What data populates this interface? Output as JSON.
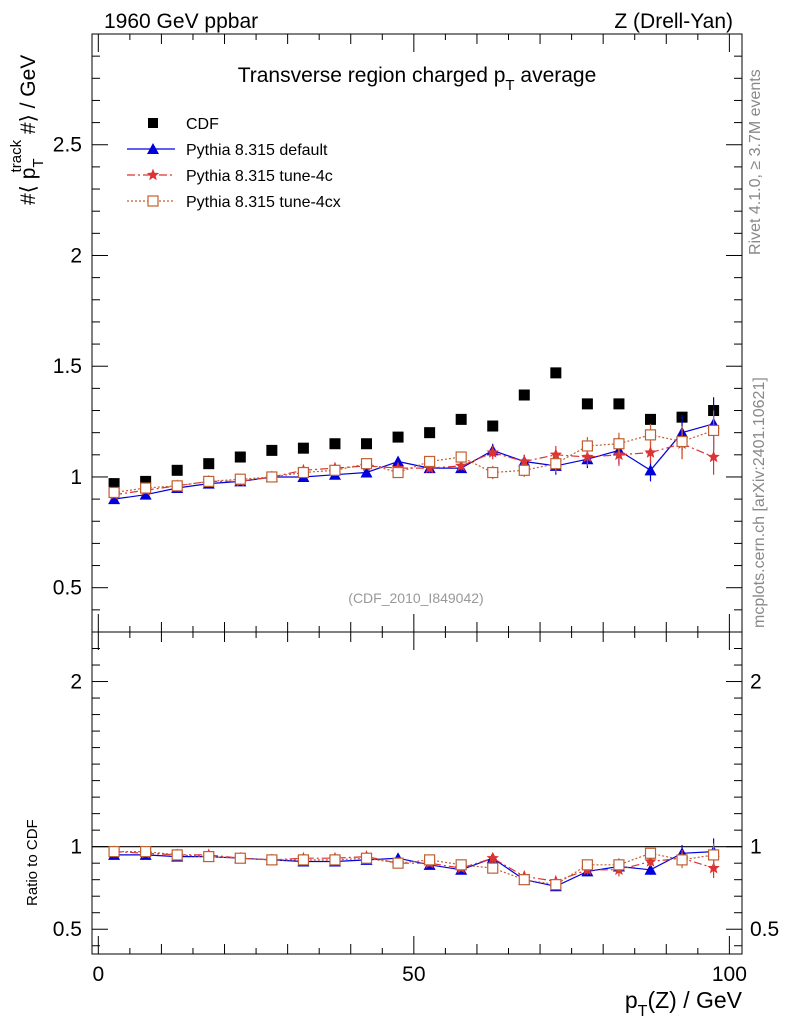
{
  "header": {
    "energy": "1960 GeV ppbar",
    "process": "Z (Drell-Yan)"
  },
  "side_text": {
    "rivet": "Rivet 4.1.0, ≥ 3.7M events",
    "mcplots": "mcplots.cern.ch [arXiv:2401.10621]"
  },
  "chart_data": [
    {
      "type": "scatter",
      "panel": "main",
      "title": "Transverse region charged p",
      "title_sub": "T",
      "title_rest": " average",
      "ylabel": "#⟨ p",
      "ylabel_sub": "T",
      "ylabel_sup": "track",
      "ylabel_rest": " #⟩ / GeV",
      "watermark": "(CDF_2010_I849042)",
      "xlim": [
        -1,
        102
      ],
      "ylim": [
        0.3,
        3.0
      ],
      "y_ticks": [
        0.5,
        1,
        1.5,
        2,
        2.5
      ],
      "y_tick_labels": [
        "0.5",
        "1",
        "1.5",
        "2",
        "2.5"
      ],
      "legend_position": "top-left",
      "x": [
        2.5,
        7.5,
        12.5,
        17.5,
        22.5,
        27.5,
        32.5,
        37.5,
        42.5,
        47.5,
        52.5,
        57.5,
        62.5,
        67.5,
        72.5,
        77.5,
        82.5,
        87.5,
        92.5,
        97.5
      ],
      "series": [
        {
          "name": "CDF",
          "color": "#000000",
          "marker": "square-filled",
          "values": [
            0.97,
            0.98,
            1.03,
            1.06,
            1.09,
            1.12,
            1.13,
            1.15,
            1.15,
            1.18,
            1.2,
            1.26,
            1.23,
            1.37,
            1.47,
            1.33,
            1.33,
            1.26,
            1.27,
            1.3
          ]
        },
        {
          "name": "Pythia 8.315 default",
          "color": "#0000dd",
          "marker": "triangle",
          "line": "solid",
          "values": [
            0.9,
            0.92,
            0.95,
            0.97,
            0.98,
            1.0,
            1.0,
            1.01,
            1.02,
            1.07,
            1.04,
            1.04,
            1.12,
            1.07,
            1.05,
            1.08,
            1.12,
            1.03,
            1.2,
            1.24
          ],
          "errors": [
            0.01,
            0.01,
            0.01,
            0.01,
            0.01,
            0.01,
            0.01,
            0.01,
            0.01,
            0.02,
            0.02,
            0.02,
            0.03,
            0.03,
            0.04,
            0.04,
            0.06,
            0.05,
            0.08,
            0.12
          ]
        },
        {
          "name": "Pythia 8.315 tune-4c",
          "color": "#dd3333",
          "marker": "star",
          "line": "dashdot",
          "values": [
            0.92,
            0.94,
            0.96,
            0.98,
            0.98,
            1.0,
            1.03,
            1.04,
            1.05,
            1.04,
            1.04,
            1.05,
            1.11,
            1.07,
            1.1,
            1.09,
            1.1,
            1.11,
            1.15,
            1.09
          ],
          "errors": [
            0.01,
            0.01,
            0.01,
            0.01,
            0.01,
            0.01,
            0.01,
            0.01,
            0.01,
            0.02,
            0.02,
            0.02,
            0.03,
            0.03,
            0.04,
            0.04,
            0.05,
            0.05,
            0.07,
            0.08
          ]
        },
        {
          "name": "Pythia 8.315 tune-4cx",
          "color": "#c06030",
          "marker": "square-open",
          "line": "dotted",
          "values": [
            0.93,
            0.95,
            0.96,
            0.98,
            0.99,
            1.0,
            1.02,
            1.03,
            1.06,
            1.02,
            1.07,
            1.09,
            1.02,
            1.03,
            1.06,
            1.14,
            1.15,
            1.19,
            1.16,
            1.21
          ],
          "errors": [
            0.01,
            0.01,
            0.01,
            0.01,
            0.01,
            0.01,
            0.01,
            0.01,
            0.01,
            0.02,
            0.02,
            0.02,
            0.03,
            0.03,
            0.04,
            0.04,
            0.05,
            0.05,
            0.07,
            0.09
          ]
        }
      ]
    },
    {
      "type": "line",
      "panel": "ratio",
      "ylabel": "Ratio to CDF",
      "xlabel": "p",
      "xlabel_sub": "T",
      "xlabel_rest": "(Z) / GeV",
      "xlim": [
        -1,
        102
      ],
      "ylim": [
        0.35,
        2.3
      ],
      "x_ticks": [
        0,
        50,
        100
      ],
      "x_tick_labels": [
        "0",
        "50",
        "100"
      ],
      "y_ticks": [
        0.5,
        1,
        2
      ],
      "y_tick_labels": [
        "0.5",
        "1",
        "2"
      ],
      "reference_line": 1,
      "x": [
        2.5,
        7.5,
        12.5,
        17.5,
        22.5,
        27.5,
        32.5,
        37.5,
        42.5,
        47.5,
        52.5,
        57.5,
        62.5,
        67.5,
        72.5,
        77.5,
        82.5,
        87.5,
        92.5,
        97.5
      ],
      "series": [
        {
          "name": "Pythia 8.315 default",
          "color": "#0000dd",
          "marker": "triangle",
          "line": "solid",
          "values": [
            0.95,
            0.95,
            0.94,
            0.94,
            0.93,
            0.92,
            0.91,
            0.91,
            0.92,
            0.93,
            0.89,
            0.86,
            0.93,
            0.8,
            0.76,
            0.85,
            0.88,
            0.86,
            0.96,
            0.97
          ],
          "errors": [
            0.01,
            0.01,
            0.01,
            0.01,
            0.01,
            0.01,
            0.01,
            0.01,
            0.01,
            0.02,
            0.02,
            0.02,
            0.03,
            0.03,
            0.03,
            0.03,
            0.04,
            0.03,
            0.05,
            0.08
          ]
        },
        {
          "name": "Pythia 8.315 tune-4c",
          "color": "#dd3333",
          "marker": "star",
          "line": "dashdot",
          "values": [
            0.97,
            0.96,
            0.95,
            0.95,
            0.93,
            0.92,
            0.93,
            0.93,
            0.94,
            0.9,
            0.9,
            0.87,
            0.93,
            0.82,
            0.79,
            0.86,
            0.86,
            0.91,
            0.93,
            0.87
          ],
          "errors": [
            0.01,
            0.01,
            0.01,
            0.01,
            0.01,
            0.01,
            0.01,
            0.01,
            0.01,
            0.02,
            0.02,
            0.02,
            0.03,
            0.03,
            0.03,
            0.03,
            0.04,
            0.03,
            0.05,
            0.06
          ]
        },
        {
          "name": "Pythia 8.315 tune-4cx",
          "color": "#c06030",
          "marker": "square-open",
          "line": "dotted",
          "values": [
            0.97,
            0.97,
            0.95,
            0.94,
            0.93,
            0.92,
            0.92,
            0.92,
            0.93,
            0.9,
            0.92,
            0.89,
            0.87,
            0.8,
            0.77,
            0.89,
            0.89,
            0.96,
            0.92,
            0.95
          ],
          "errors": [
            0.01,
            0.01,
            0.01,
            0.01,
            0.01,
            0.01,
            0.01,
            0.01,
            0.01,
            0.02,
            0.02,
            0.02,
            0.03,
            0.03,
            0.03,
            0.03,
            0.04,
            0.03,
            0.05,
            0.07
          ]
        }
      ]
    }
  ]
}
